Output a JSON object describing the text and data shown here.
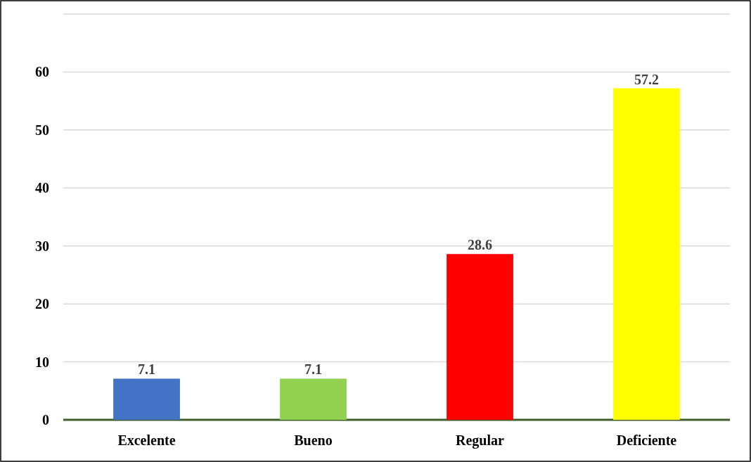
{
  "chart_data": {
    "type": "bar",
    "categories": [
      "Excelente",
      "Bueno",
      "Regular",
      "Deficiente"
    ],
    "values": [
      7.1,
      7.1,
      28.6,
      57.2
    ],
    "colors": [
      "#4472c4",
      "#92d050",
      "#ff0000",
      "#ffff00"
    ],
    "data_labels": true,
    "ylim": [
      0,
      70
    ],
    "yticks": [
      0,
      10,
      20,
      30,
      40,
      50,
      60,
      {
        "value": 70,
        "label": null
      }
    ],
    "grid": "y"
  }
}
